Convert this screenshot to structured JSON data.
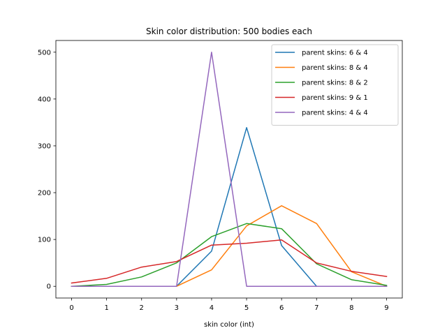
{
  "chart_data": {
    "type": "line",
    "title": "Skin color distribution: 500 bodies each",
    "xlabel": "skin color (int)",
    "ylabel": "",
    "x": [
      0,
      1,
      2,
      3,
      4,
      5,
      6,
      7,
      8,
      9
    ],
    "xticks": [
      "0",
      "1",
      "2",
      "3",
      "4",
      "5",
      "6",
      "7",
      "8",
      "9"
    ],
    "yticks": [
      "0",
      "100",
      "200",
      "300",
      "400",
      "500"
    ],
    "xlim": [
      -0.45,
      9.45
    ],
    "ylim": [
      -25,
      525
    ],
    "grid": false,
    "legend_position": "top-right",
    "series": [
      {
        "name": "parent skins: 6 & 4",
        "color": "#1f77b4",
        "values": [
          0,
          0,
          0,
          0,
          75,
          339,
          87,
          0,
          0,
          0
        ]
      },
      {
        "name": "parent skins: 8 & 4",
        "color": "#ff7f0e",
        "values": [
          0,
          0,
          0,
          0,
          35,
          129,
          172,
          134,
          31,
          0
        ]
      },
      {
        "name": "parent skins: 8 & 2",
        "color": "#2ca02c",
        "values": [
          0,
          4,
          20,
          50,
          106,
          134,
          123,
          48,
          14,
          2
        ]
      },
      {
        "name": "parent skins: 9 & 1",
        "color": "#d62728",
        "values": [
          7,
          17,
          41,
          53,
          88,
          92,
          99,
          50,
          32,
          21
        ]
      },
      {
        "name": "parent skins: 4 & 4",
        "color": "#9467bd",
        "values": [
          0,
          0,
          0,
          0,
          500,
          0,
          0,
          0,
          0,
          0
        ]
      }
    ]
  }
}
